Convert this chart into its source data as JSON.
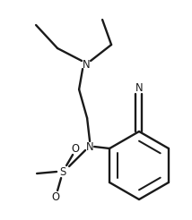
{
  "bg_color": "#ffffff",
  "line_color": "#1a1a1a",
  "line_width": 1.7,
  "font_size": 7.8,
  "fig_width": 2.14,
  "fig_height": 2.46,
  "dpi": 100,
  "xlim": [
    0,
    214
  ],
  "ylim": [
    0,
    246
  ]
}
